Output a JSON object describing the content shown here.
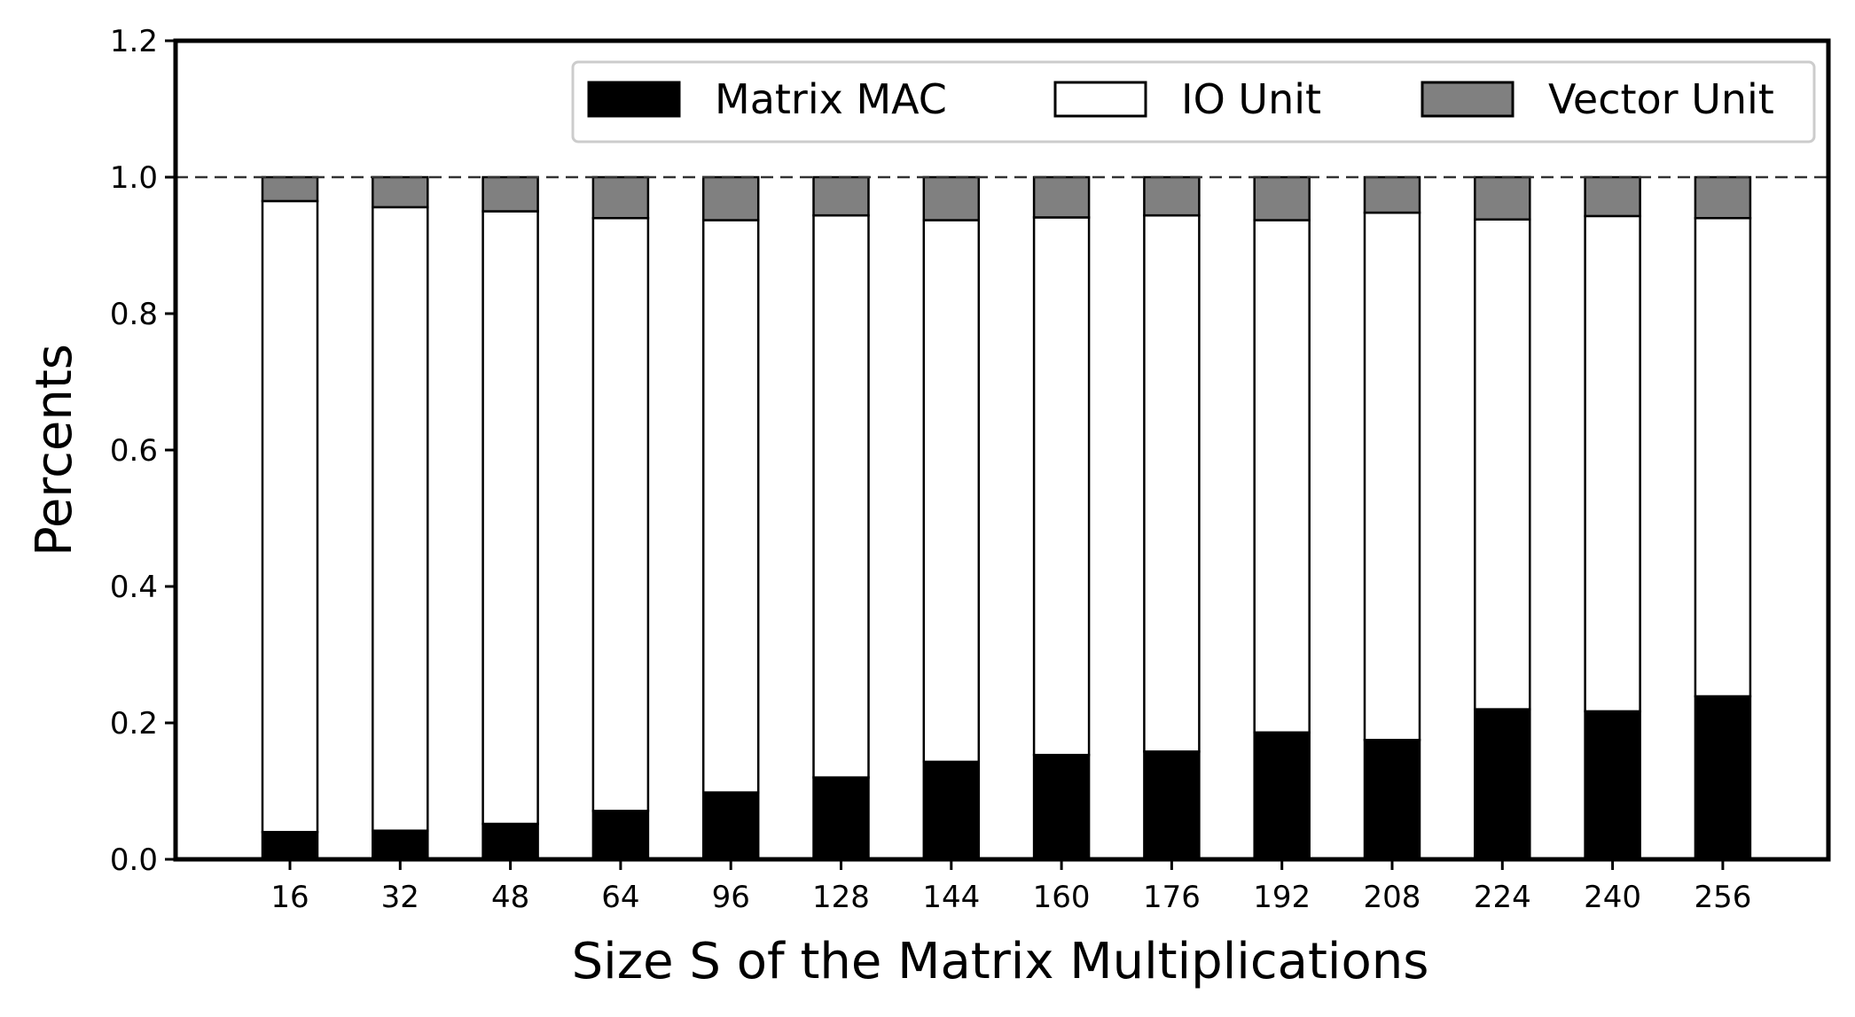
{
  "chart_data": {
    "type": "bar",
    "stacked": true,
    "categories": [
      "16",
      "32",
      "48",
      "64",
      "96",
      "128",
      "144",
      "160",
      "176",
      "192",
      "208",
      "224",
      "240",
      "256"
    ],
    "series": [
      {
        "name": "Matrix MAC",
        "color": "#000000",
        "values": [
          0.04,
          0.042,
          0.052,
          0.071,
          0.098,
          0.12,
          0.143,
          0.153,
          0.158,
          0.186,
          0.175,
          0.22,
          0.217,
          0.239
        ]
      },
      {
        "name": "IO Unit",
        "color": "#ffffff",
        "values": [
          0.925,
          0.914,
          0.898,
          0.869,
          0.839,
          0.824,
          0.794,
          0.788,
          0.786,
          0.751,
          0.773,
          0.718,
          0.726,
          0.701
        ]
      },
      {
        "name": "Vector Unit",
        "color": "#808080",
        "values": [
          0.035,
          0.044,
          0.05,
          0.06,
          0.063,
          0.056,
          0.063,
          0.059,
          0.056,
          0.063,
          0.052,
          0.062,
          0.057,
          0.06
        ]
      }
    ],
    "xlabel": "Size S of the Matrix Multiplications",
    "ylabel": "Percents",
    "ylim": [
      0,
      1.2
    ],
    "yticks": [
      "0.0",
      "0.2",
      "0.4",
      "0.6",
      "0.8",
      "1.0",
      "1.2"
    ],
    "reference_line": {
      "y": 1.0,
      "style": "dashed"
    },
    "legend_position": "top-right",
    "grid": false
  }
}
